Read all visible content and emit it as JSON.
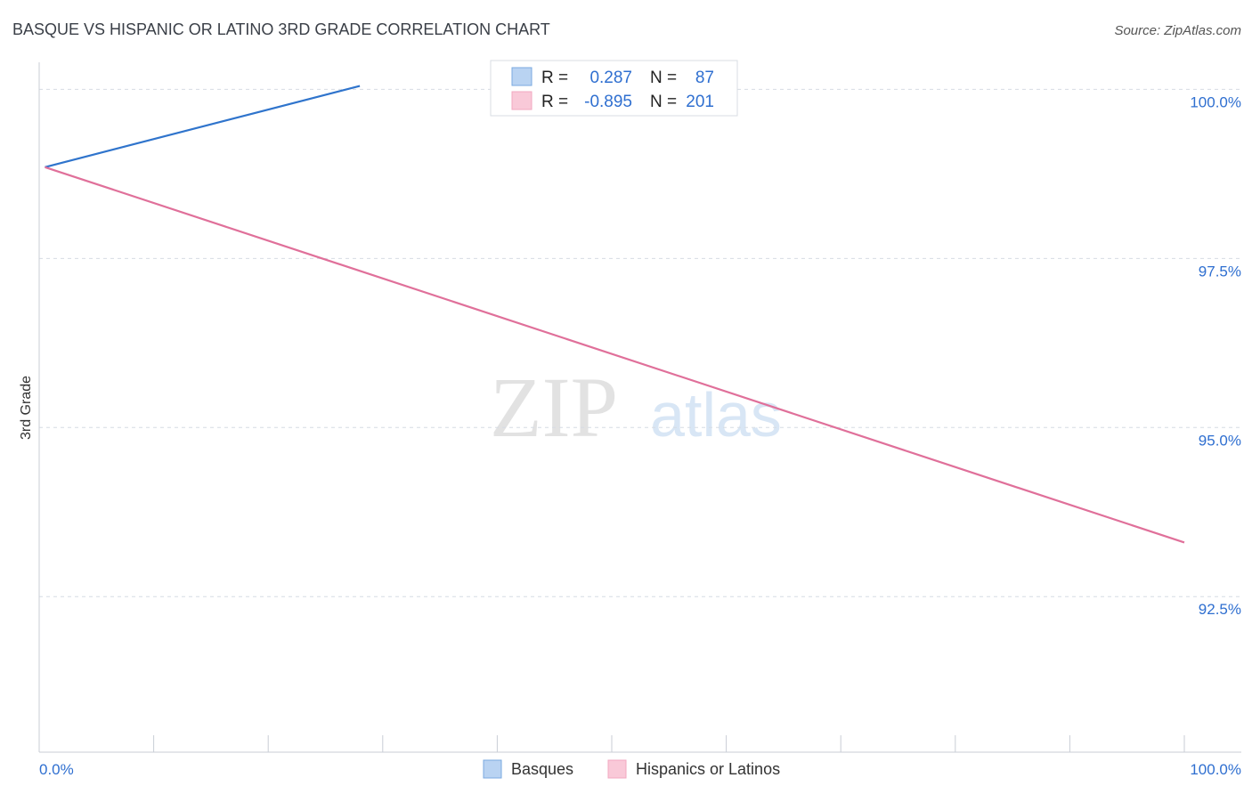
{
  "chart_data": {
    "type": "scatter",
    "title": "BASQUE VS HISPANIC OR LATINO 3RD GRADE CORRELATION CHART",
    "source": "Source: ZipAtlas.com",
    "ylabel": "3rd Grade",
    "xlim": [
      0,
      100
    ],
    "ylim": [
      90.2,
      100.4
    ],
    "x_tick_labels": {
      "min": "0.0%",
      "max": "100.0%"
    },
    "y_ticks": [
      {
        "value": 100.0,
        "label": "100.0%"
      },
      {
        "value": 97.5,
        "label": "97.5%"
      },
      {
        "value": 95.0,
        "label": "95.0%"
      },
      {
        "value": 92.5,
        "label": "92.5%"
      }
    ],
    "watermark": {
      "zip": "ZIP",
      "atlas": "atlas"
    },
    "colors": {
      "blue": "#7aaae0",
      "blue_line": "#2f74cc",
      "pink": "#f2a8c0",
      "pink_line": "#e0709a",
      "value_text": "#2f6fd0",
      "grid": "#d6dbe3"
    },
    "legend_box": [
      {
        "r_label": "R =",
        "r_value": "0.287",
        "n_label": "N =",
        "n_value": "87",
        "color": "blue"
      },
      {
        "r_label": "R =",
        "r_value": "-0.895",
        "n_label": "N =",
        "n_value": "201",
        "color": "pink"
      }
    ],
    "legend_bottom": [
      "Basques",
      "Hispanics or Latinos"
    ],
    "trend_lines": [
      {
        "series": "Basques",
        "x": [
          0.5,
          28
        ],
        "y": [
          98.85,
          100.05
        ]
      },
      {
        "series": "Hispanics or Latinos",
        "x": [
          0.5,
          100
        ],
        "y": [
          98.85,
          93.3
        ]
      }
    ]
  }
}
